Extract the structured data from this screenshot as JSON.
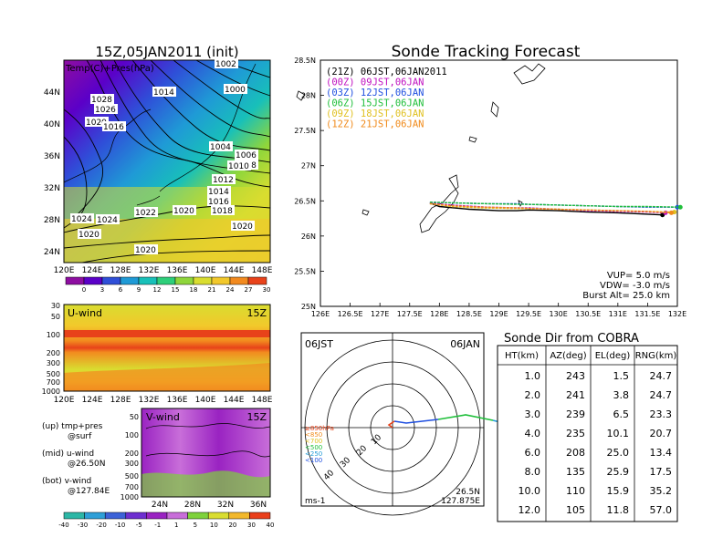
{
  "colors": {
    "temp_scale": [
      "#8e0ea1",
      "#5b00c8",
      "#2f4fd8",
      "#1f9ad6",
      "#18c0b9",
      "#2ecf7a",
      "#8fd63b",
      "#d9dd30",
      "#f2c82b",
      "#f28a1f",
      "#e8421a"
    ],
    "vwind_scale": [
      "#2cb7a6",
      "#2e9fd8",
      "#3c62d8",
      "#6e2fd0",
      "#9a23c2",
      "#c86ed9",
      "#7ed23b",
      "#d9dd30",
      "#f2b82b",
      "#ea3f1a"
    ],
    "forecast": [
      "#000000",
      "#c010c0",
      "#1f4fe0",
      "#1fbf3a",
      "#e0c020",
      "#f08a1a"
    ]
  },
  "header": {
    "map_title": "15Z,05JAN2011 (init)",
    "map_overlay_label": "Temp(C)+Pres(hPa)",
    "track_title": "Sonde Tracking Forecast"
  },
  "map": {
    "lat_labels": [
      "44N",
      "40N",
      "36N",
      "32N",
      "28N",
      "24N"
    ],
    "lon_labels": [
      "120E",
      "124E",
      "128E",
      "132E",
      "136E",
      "140E",
      "144E",
      "148E"
    ],
    "colorbar_labels": [
      "0",
      "3",
      "6",
      "9",
      "12",
      "15",
      "18",
      "21",
      "24",
      "27",
      "30"
    ],
    "isobars": [
      "1024",
      "1028",
      "1026",
      "1020",
      "1016",
      "1014",
      "1002",
      "1000",
      "1004",
      "1006",
      "1008",
      "1010",
      "1012",
      "1014",
      "1016",
      "1018",
      "1020",
      "1022",
      "1024",
      "1020",
      "1020",
      "1020"
    ]
  },
  "uwind": {
    "title": "U-wind",
    "time": "15Z",
    "p_labels": [
      "30",
      "50",
      "100",
      "200",
      "300",
      "500",
      "700",
      "1000"
    ],
    "lon_labels": [
      "120E",
      "124E",
      "128E",
      "132E",
      "136E",
      "140E",
      "144E",
      "148E"
    ]
  },
  "vwind": {
    "title": "V-wind",
    "time": "15Z",
    "p_labels": [
      "50",
      "100",
      "200",
      "300",
      "500",
      "700",
      "1000"
    ],
    "lat_labels": [
      "24N",
      "28N",
      "32N",
      "36N"
    ],
    "colorbar_labels": [
      "-40",
      "-30",
      "-20",
      "-10",
      "-5",
      "-1",
      "1",
      "5",
      "10",
      "20",
      "30",
      "40"
    ]
  },
  "notes": {
    "line1": "(up) tmp+pres",
    "line1b": "@surf",
    "line2": "(mid) u-wind",
    "line2b": "@26.50N",
    "line3": "(bot) v-wind",
    "line3b": "@127.84E"
  },
  "track": {
    "legend": [
      {
        "label": "(21Z) 06JST,06JAN2011",
        "color": "#000000"
      },
      {
        "label": "(00Z) 09JST,06JAN",
        "color": "#c010c0"
      },
      {
        "label": "(03Z) 12JST,06JAN",
        "color": "#1f4fe0"
      },
      {
        "label": "(06Z) 15JST,06JAN",
        "color": "#1fbf3a"
      },
      {
        "label": "(09Z) 18JST,06JAN",
        "color": "#e0c020"
      },
      {
        "label": "(12Z) 21JST,06JAN",
        "color": "#f08a1a"
      }
    ],
    "lat_labels": [
      "28.5N",
      "28N",
      "27.5N",
      "27N",
      "26.5N",
      "26N",
      "25.5N",
      "25N"
    ],
    "lon_labels": [
      "126E",
      "126.5E",
      "127E",
      "127.5E",
      "128E",
      "128.5E",
      "129E",
      "129.5E",
      "130E",
      "130.5E",
      "131E",
      "131.5E",
      "132E"
    ],
    "info": {
      "vup": "VUP= 5.0 m/s",
      "vdw": "VDW= -3.0 m/s",
      "burst": "Burst Alt= 25.0 km"
    }
  },
  "polar": {
    "left_label": "06JST",
    "right_label": "06JAN",
    "pos_line1": "26.5N",
    "pos_line2": "127.875E",
    "unit": "ms-1",
    "ring_labels": [
      "10",
      "20",
      "30",
      "40"
    ],
    "level_labels": [
      "≥850hPa",
      "<850",
      "<700",
      "<500",
      "<250",
      "<100"
    ]
  },
  "table": {
    "title": "Sonde Dir from COBRA",
    "headers": [
      "HT(km)",
      "AZ(deg)",
      "EL(deg)",
      "RNG(km)"
    ],
    "rows": [
      [
        "1.0",
        "243",
        "1.5",
        "24.7"
      ],
      [
        "2.0",
        "241",
        "3.8",
        "24.7"
      ],
      [
        "3.0",
        "239",
        "6.5",
        "23.3"
      ],
      [
        "4.0",
        "235",
        "10.1",
        "20.7"
      ],
      [
        "6.0",
        "208",
        "25.0",
        "13.4"
      ],
      [
        "8.0",
        "135",
        "25.9",
        "17.5"
      ],
      [
        "10.0",
        "110",
        "15.9",
        "35.2"
      ],
      [
        "12.0",
        "105",
        "11.8",
        "57.0"
      ]
    ]
  },
  "chart_data": [
    {
      "type": "heatmap",
      "title": "15Z,05JAN2011 (init)",
      "subtitle": "Temp(C)+Pres(hPa)",
      "xlim": [
        120,
        150
      ],
      "ylim": [
        21,
        48
      ],
      "colorbar": [
        0,
        3,
        6,
        9,
        12,
        15,
        18,
        21,
        24,
        27,
        30
      ]
    },
    {
      "type": "heatmap",
      "title": "U-wind",
      "xlim": [
        120,
        150
      ],
      "ylim": [
        1000,
        30
      ]
    },
    {
      "type": "heatmap",
      "title": "V-wind",
      "xlim": [
        22,
        38
      ],
      "ylim": [
        1000,
        50
      ],
      "colorbar": [
        -40,
        -30,
        -20,
        -10,
        -5,
        -1,
        1,
        5,
        10,
        20,
        30,
        40
      ]
    },
    {
      "type": "line",
      "title": "Sonde Tracking Forecast",
      "xlim": [
        126,
        132
      ],
      "ylim": [
        25,
        28.5
      ],
      "series": [
        {
          "name": "(21Z) 06JST,06JAN2011",
          "x": [
            127.84,
            128.0,
            128.5,
            129.0,
            129.3,
            129.5,
            130.0,
            130.5,
            131.0,
            131.5,
            131.75
          ],
          "y": [
            26.47,
            26.42,
            26.38,
            26.36,
            26.36,
            26.37,
            26.36,
            26.34,
            26.33,
            26.31,
            26.3
          ]
        },
        {
          "name": "(00Z) 09JST,06JAN",
          "x": [
            127.84,
            128.2,
            128.8,
            129.3,
            129.5,
            130.0,
            130.5,
            131.0,
            131.5,
            131.8
          ],
          "y": [
            26.47,
            26.44,
            26.41,
            26.4,
            26.4,
            26.38,
            26.36,
            26.35,
            26.34,
            26.33
          ]
        },
        {
          "name": "(03Z) 12JST,06JAN",
          "x": [
            127.84,
            128.3,
            128.8,
            129.3,
            129.5,
            130.0,
            130.5,
            131.0,
            131.5,
            132.0
          ],
          "y": [
            26.48,
            26.47,
            26.46,
            26.46,
            26.45,
            26.44,
            26.43,
            26.42,
            26.41,
            26.41
          ]
        },
        {
          "name": "(06Z) 15JST,06JAN",
          "x": [
            127.84,
            128.3,
            128.8,
            129.3,
            129.5,
            130.0,
            130.5,
            131.0,
            131.5,
            132.05
          ],
          "y": [
            26.48,
            26.47,
            26.46,
            26.45,
            26.45,
            26.44,
            26.43,
            26.42,
            26.42,
            26.41
          ]
        },
        {
          "name": "(09Z) 18JST,06JAN",
          "x": [
            127.84,
            128.2,
            128.7,
            129.3,
            129.6,
            130.0,
            130.5,
            131.0,
            131.5,
            131.95
          ],
          "y": [
            26.46,
            26.42,
            26.4,
            26.39,
            26.39,
            26.38,
            26.37,
            26.36,
            26.35,
            26.34
          ]
        },
        {
          "name": "(12Z) 21JST,06JAN",
          "x": [
            127.84,
            128.2,
            128.7,
            129.3,
            129.6,
            130.0,
            130.5,
            131.0,
            131.5,
            131.9
          ],
          "y": [
            26.46,
            26.43,
            26.41,
            26.4,
            26.39,
            26.38,
            26.37,
            26.36,
            26.35,
            26.33
          ]
        }
      ]
    },
    {
      "type": "table",
      "title": "Sonde Dir from COBRA",
      "columns": [
        "HT(km)",
        "AZ(deg)",
        "EL(deg)",
        "RNG(km)"
      ],
      "rows": [
        [
          1.0,
          243,
          1.5,
          24.7
        ],
        [
          2.0,
          241,
          3.8,
          24.7
        ],
        [
          3.0,
          239,
          6.5,
          23.3
        ],
        [
          4.0,
          235,
          10.1,
          20.7
        ],
        [
          6.0,
          208,
          25.0,
          13.4
        ],
        [
          8.0,
          135,
          25.9,
          17.5
        ],
        [
          10.0,
          110,
          15.9,
          35.2
        ],
        [
          12.0,
          105,
          11.8,
          57.0
        ]
      ]
    }
  ]
}
